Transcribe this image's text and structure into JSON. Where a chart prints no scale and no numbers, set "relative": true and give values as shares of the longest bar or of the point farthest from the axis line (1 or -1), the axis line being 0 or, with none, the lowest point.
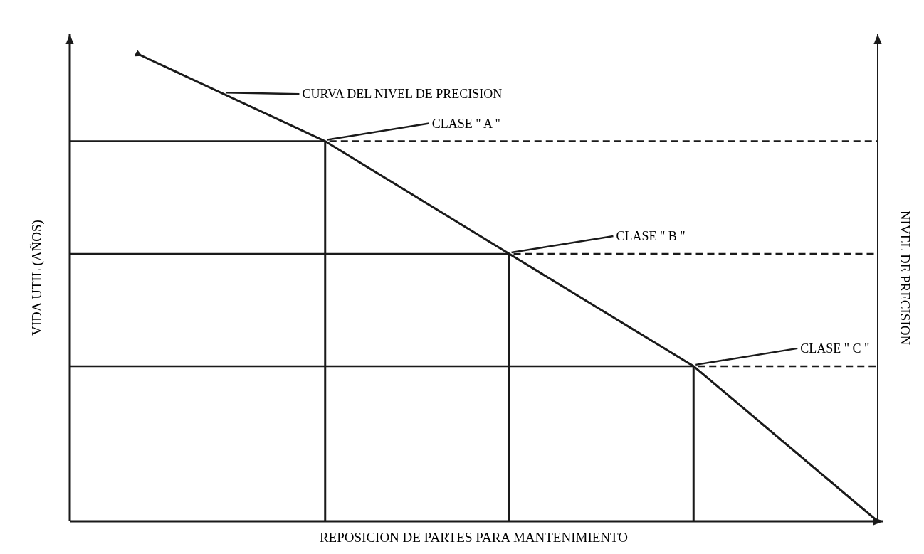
{
  "chart_data": {
    "type": "line",
    "relative": true,
    "categories": [
      null,
      null,
      null,
      null,
      null
    ],
    "series": [
      {
        "color": "#1a1a1a",
        "values": [
          1,
          0.816,
          0.574,
          0.333,
          0
        ]
      }
    ],
    "xlabel": "REPOSICION DE PARTES PARA MANTENIMIENTO",
    "ylabel": "VIDA UTIL (AÑOS)",
    "y2label": "NIVEL DE PRECISION",
    "ref_lines": [
      {
        "axis": "y",
        "value": 0.816,
        "color": "#1a1a1a"
      },
      {
        "axis": "y",
        "value": 0.574,
        "color": "#1a1a1a"
      },
      {
        "axis": "y",
        "value": 0.333,
        "color": "#1a1a1a"
      }
    ],
    "annotations": [
      "CURVA DEL NIVEL DE PRECISION",
      "CLASE \" A \"",
      "CLASE \" B \"",
      "CLASE \" C \""
    ],
    "grid": false,
    "legend": false,
    "marker": "none",
    "line_style": "solid"
  }
}
